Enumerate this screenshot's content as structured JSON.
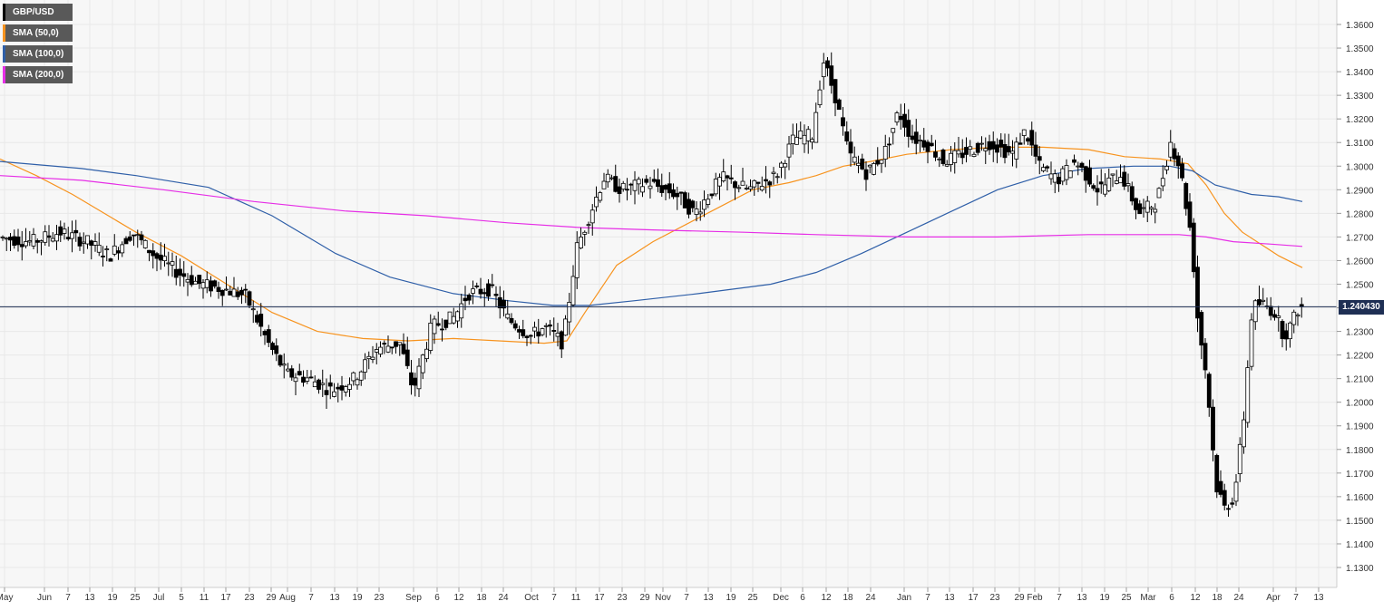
{
  "chart_data": {
    "type": "candlestick",
    "symbol": "GBP/USD",
    "legend": [
      {
        "label": "GBP/USD",
        "color": "#000000"
      },
      {
        "label": "SMA (50,0)",
        "color": "#f7931e"
      },
      {
        "label": "SMA (100,0)",
        "color": "#2f5fa8"
      },
      {
        "label": "SMA (200,0)",
        "color": "#e62ee6"
      }
    ],
    "last_price_label": "1.240430",
    "last_price": 1.24043,
    "ylim": [
      1.28,
      1.365
    ],
    "ymin": 1.28,
    "ymax": 1.365,
    "y_ticks": [
      "1.3600",
      "1.3500",
      "1.3400",
      "1.3300",
      "1.3200",
      "1.3100",
      "1.3000",
      "1.2900",
      "1.2800",
      "1.2700",
      "1.2600",
      "1.2500",
      "1.2400",
      "1.2300",
      "1.2200",
      "1.2100",
      "1.2000",
      "1.1900",
      "1.1800",
      "1.1700",
      "1.1600",
      "1.1500",
      "1.1400",
      "1.1300"
    ],
    "x_ticks": [
      "May",
      "Jun",
      "7",
      "13",
      "19",
      "25",
      "Jul",
      "5",
      "11",
      "17",
      "23",
      "29",
      "Aug",
      "7",
      "13",
      "19",
      "23",
      "Sep",
      "6",
      "12",
      "18",
      "24",
      "Oct",
      "7",
      "11",
      "17",
      "23",
      "29",
      "Nov",
      "7",
      "13",
      "19",
      "25",
      "Dec",
      "6",
      "12",
      "18",
      "24",
      "Jan",
      "7",
      "13",
      "17",
      "23",
      "29",
      "Feb",
      "7",
      "13",
      "19",
      "25",
      "Mar",
      "6",
      "12",
      "18",
      "24",
      "Apr",
      "7",
      "13"
    ],
    "grid": true,
    "colors": {
      "up": "#ffffff",
      "down": "#000000",
      "wick": "#000000",
      "grid": "#e8e8e8",
      "bg": "#f7f7f7",
      "price_line": "#1e2f54"
    },
    "sma50": [
      [
        1.303,
        0.0
      ],
      [
        1.296,
        0.02
      ],
      [
        1.287,
        0.05
      ],
      [
        1.272,
        0.1
      ],
      [
        1.262,
        0.14
      ],
      [
        1.25,
        0.18
      ],
      [
        1.238,
        0.22
      ],
      [
        1.23,
        0.26
      ],
      [
        1.227,
        0.3
      ],
      [
        1.226,
        0.34
      ],
      [
        1.226,
        0.38
      ],
      [
        1.24,
        0.43
      ],
      [
        1.265,
        0.49
      ],
      [
        1.28,
        0.52
      ],
      [
        1.295,
        0.56
      ],
      [
        1.3,
        0.6
      ],
      [
        1.303,
        0.63
      ],
      [
        1.306,
        0.67
      ],
      [
        1.308,
        0.72
      ],
      [
        1.306,
        0.76
      ],
      [
        1.303,
        0.8
      ],
      [
        1.3,
        0.83
      ],
      [
        1.295,
        0.86
      ],
      [
        1.285,
        0.88
      ],
      [
        1.27,
        0.9
      ],
      [
        1.262,
        0.94
      ]
    ],
    "sma100": [
      [
        1.302,
        0.0
      ],
      [
        1.299,
        0.06
      ],
      [
        1.295,
        0.12
      ],
      [
        1.285,
        0.18
      ],
      [
        1.266,
        0.23
      ],
      [
        1.248,
        0.29
      ],
      [
        1.242,
        0.34
      ],
      [
        1.241,
        0.38
      ],
      [
        1.241,
        0.42
      ],
      [
        1.247,
        0.47
      ],
      [
        1.256,
        0.53
      ],
      [
        1.27,
        0.58
      ],
      [
        1.283,
        0.64
      ],
      [
        1.295,
        0.7
      ],
      [
        1.299,
        0.76
      ],
      [
        1.3,
        0.81
      ],
      [
        1.298,
        0.85
      ],
      [
        1.29,
        0.89
      ],
      [
        1.285,
        0.94
      ]
    ],
    "sma200": [
      [
        1.296,
        0.0
      ],
      [
        1.294,
        0.06
      ],
      [
        1.29,
        0.12
      ],
      [
        1.283,
        0.18
      ],
      [
        1.279,
        0.24
      ],
      [
        1.276,
        0.3
      ],
      [
        1.274,
        0.36
      ],
      [
        1.272,
        0.42
      ],
      [
        1.271,
        0.5
      ],
      [
        1.27,
        0.6
      ],
      [
        1.27,
        0.7
      ],
      [
        1.27,
        0.8
      ],
      [
        1.271,
        0.84
      ],
      [
        1.268,
        0.88
      ],
      [
        1.266,
        0.94
      ]
    ],
    "candles": [
      [
        1.304,
        1.312,
        1.298,
        1.307
      ],
      [
        1.307,
        1.313,
        1.302,
        1.305
      ],
      [
        1.305,
        1.307,
        1.293,
        1.297
      ],
      [
        1.297,
        1.302,
        1.29,
        1.3
      ],
      [
        1.3,
        1.303,
        1.293,
        1.295
      ],
      [
        1.295,
        1.3,
        1.29,
        1.298
      ],
      [
        1.298,
        1.31,
        1.296,
        1.308
      ],
      [
        1.308,
        1.316,
        1.304,
        1.312
      ],
      [
        1.312,
        1.315,
        1.305,
        1.308
      ],
      [
        1.308,
        1.312,
        1.302,
        1.31
      ],
      [
        1.31,
        1.315,
        1.305,
        1.309
      ],
      [
        1.309,
        1.31,
        1.3,
        1.302
      ],
      [
        1.302,
        1.304,
        1.285,
        1.288
      ],
      [
        1.288,
        1.295,
        1.282,
        1.293
      ],
      [
        1.293,
        1.31,
        1.29,
        1.307
      ],
      [
        1.307,
        1.318,
        1.304,
        1.316
      ],
      [
        1.316,
        1.32,
        1.309,
        1.312
      ],
      [
        1.312,
        1.315,
        1.302,
        1.305
      ],
      [
        1.305,
        1.312,
        1.301,
        1.31
      ],
      [
        1.31,
        1.31,
        1.293,
        1.296
      ],
      [
        1.296,
        1.299,
        1.285,
        1.29
      ],
      [
        1.29,
        1.296,
        1.283,
        1.293
      ],
      [
        1.293,
        1.298,
        1.285,
        1.288
      ],
      [
        1.288,
        1.29,
        1.276,
        1.279
      ],
      [
        1.279,
        1.287,
        1.275,
        1.284
      ],
      [
        1.284,
        1.296,
        1.281,
        1.294
      ],
      [
        1.294,
        1.296,
        1.288,
        1.291
      ],
      [
        1.291,
        1.297,
        1.276,
        1.28
      ],
      [
        1.28,
        1.293,
        1.278,
        1.29
      ],
      [
        1.29,
        1.298,
        1.284,
        1.295
      ],
      [
        1.295,
        1.298,
        1.285,
        1.287
      ],
      [
        1.287,
        1.295,
        1.283,
        1.292
      ],
      [
        1.292,
        1.293,
        1.275,
        1.278
      ],
      [
        1.278,
        1.284,
        1.27,
        1.273
      ],
      [
        1.273,
        1.29,
        1.27,
        1.288
      ],
      [
        1.288,
        1.3,
        1.285,
        1.297
      ],
      [
        1.297,
        1.301,
        1.292,
        1.295
      ]
    ]
  }
}
